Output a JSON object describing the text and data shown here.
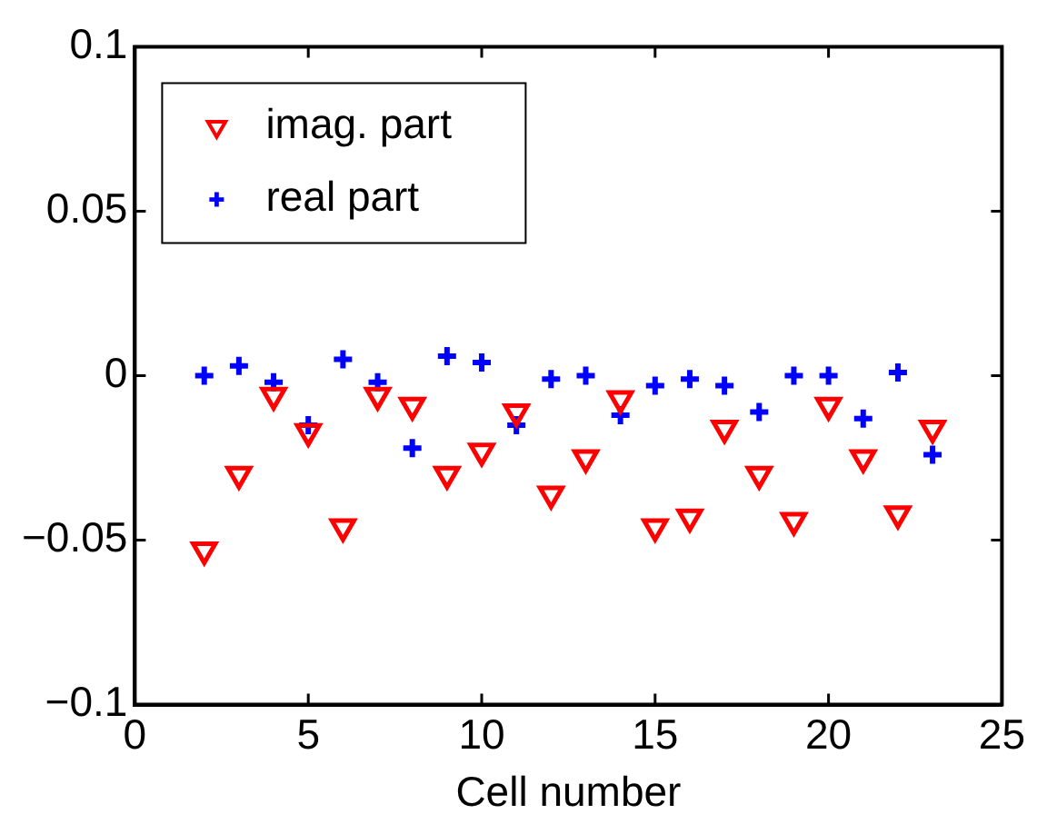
{
  "chart_data": {
    "type": "scatter",
    "xlabel": "Cell number",
    "x": [
      2,
      3,
      4,
      5,
      6,
      7,
      8,
      9,
      10,
      11,
      12,
      13,
      14,
      15,
      16,
      17,
      18,
      19,
      20,
      21,
      22,
      23
    ],
    "series": [
      {
        "name": "imag. part",
        "color": "#ff0000",
        "marker": "triangle",
        "values": [
          -0.053,
          -0.03,
          -0.006,
          -0.017,
          -0.046,
          -0.006,
          -0.009,
          -0.03,
          -0.023,
          -0.011,
          -0.036,
          -0.025,
          -0.007,
          -0.046,
          -0.043,
          -0.016,
          -0.03,
          -0.044,
          -0.009,
          -0.025,
          -0.042,
          -0.016
        ]
      },
      {
        "name": "real part",
        "color": "#0000ff",
        "marker": "cross",
        "values": [
          0.0,
          0.003,
          -0.002,
          -0.015,
          0.005,
          -0.002,
          -0.022,
          0.006,
          0.004,
          -0.015,
          -0.001,
          0.0,
          -0.012,
          -0.003,
          -0.001,
          -0.003,
          -0.011,
          0.0,
          0.0,
          -0.013,
          0.001,
          -0.024
        ]
      }
    ],
    "xlim": [
      0,
      25
    ],
    "xticks": [
      0,
      5,
      10,
      15,
      20,
      25
    ],
    "ylim": [
      -0.1,
      0.1
    ],
    "yticks": [
      {
        "value": -0.1,
        "label": "−0.1"
      },
      {
        "value": -0.05,
        "label": "−0.05"
      },
      0,
      0.05,
      0.1
    ],
    "grid": false,
    "legend": "top left"
  }
}
